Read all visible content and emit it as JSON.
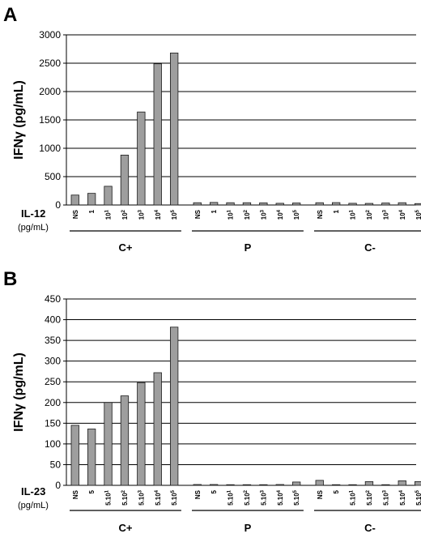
{
  "chart_data": [
    {
      "panel": "A",
      "type": "bar",
      "ylabel": "IFNγ (pg/mL)",
      "ylim": [
        0,
        3000
      ],
      "yticks": [
        0,
        500,
        1000,
        1500,
        2000,
        2500,
        3000
      ],
      "grid": true,
      "cytokine_label": "IL-12",
      "unit_label": "(pg/mL)",
      "groups": [
        {
          "name": "C+",
          "categories": [
            {
              "t": "NS"
            },
            {
              "t": "1"
            },
            {
              "t": "10",
              "s": "1"
            },
            {
              "t": "10",
              "s": "2"
            },
            {
              "t": "10",
              "s": "3"
            },
            {
              "t": "10",
              "s": "4"
            },
            {
              "t": "10",
              "s": "5"
            }
          ],
          "values": [
            175,
            205,
            330,
            880,
            1640,
            2490,
            2680
          ]
        },
        {
          "name": "P",
          "categories": [
            {
              "t": "NS"
            },
            {
              "t": "1"
            },
            {
              "t": "10",
              "s": "1"
            },
            {
              "t": "10",
              "s": "2"
            },
            {
              "t": "10",
              "s": "3"
            },
            {
              "t": "10",
              "s": "4"
            },
            {
              "t": "10",
              "s": "5"
            }
          ],
          "values": [
            40,
            45,
            40,
            40,
            38,
            30,
            35
          ]
        },
        {
          "name": "C-",
          "categories": [
            {
              "t": "NS"
            },
            {
              "t": "1"
            },
            {
              "t": "10",
              "s": "1"
            },
            {
              "t": "10",
              "s": "2"
            },
            {
              "t": "10",
              "s": "3"
            },
            {
              "t": "10",
              "s": "4"
            },
            {
              "t": "10",
              "s": "5"
            }
          ],
          "values": [
            40,
            42,
            30,
            28,
            35,
            40,
            25
          ]
        }
      ]
    },
    {
      "panel": "B",
      "type": "bar",
      "ylabel": "IFNγ (pg/mL)",
      "ylim": [
        0,
        450
      ],
      "yticks": [
        0,
        50,
        100,
        150,
        200,
        250,
        300,
        350,
        400,
        450
      ],
      "grid": true,
      "cytokine_label": "IL-23",
      "unit_label": "(pg/mL)",
      "groups": [
        {
          "name": "C+",
          "categories": [
            {
              "t": "NS"
            },
            {
              "t": "5"
            },
            {
              "t": "5.10",
              "s": "1"
            },
            {
              "t": "5.10",
              "s": "2"
            },
            {
              "t": "5.10",
              "s": "3"
            },
            {
              "t": "5.10",
              "s": "4"
            },
            {
              "t": "5.10",
              "s": "5"
            }
          ],
          "values": [
            145,
            136,
            200,
            216,
            248,
            272,
            382
          ]
        },
        {
          "name": "P",
          "categories": [
            {
              "t": "NS"
            },
            {
              "t": "5"
            },
            {
              "t": "5.10",
              "s": "1"
            },
            {
              "t": "5.10",
              "s": "2"
            },
            {
              "t": "5.10",
              "s": "3"
            },
            {
              "t": "5.10",
              "s": "4"
            },
            {
              "t": "5.10",
              "s": "5"
            }
          ],
          "values": [
            2,
            2,
            0,
            1,
            0,
            2,
            8
          ]
        },
        {
          "name": "C-",
          "categories": [
            {
              "t": "NS"
            },
            {
              "t": "5"
            },
            {
              "t": "5.10",
              "s": "1"
            },
            {
              "t": "5.10",
              "s": "2"
            },
            {
              "t": "5.10",
              "s": "3"
            },
            {
              "t": "5.10",
              "s": "4"
            },
            {
              "t": "5.10",
              "s": "5"
            }
          ],
          "values": [
            12,
            0,
            0,
            9,
            0,
            11,
            9
          ]
        }
      ]
    }
  ]
}
